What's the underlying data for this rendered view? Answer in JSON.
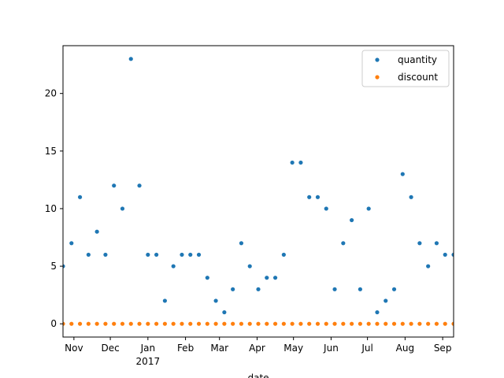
{
  "chart_data": {
    "type": "scatter",
    "title": "",
    "xlabel": "date",
    "ylabel": "",
    "grid": false,
    "legend_position": "top-right",
    "xlim": [
      "2016-10-23",
      "2017-09-10"
    ],
    "ylim": [
      -1.15,
      24.15
    ],
    "y_ticks": [
      0,
      5,
      10,
      15,
      20
    ],
    "x_ticks": [
      {
        "date": "2016-11-01",
        "label": "Nov"
      },
      {
        "date": "2016-12-01",
        "label": "Dec"
      },
      {
        "date": "2017-01-01",
        "label": "Jan",
        "sublabel": "2017"
      },
      {
        "date": "2017-02-01",
        "label": "Feb"
      },
      {
        "date": "2017-03-01",
        "label": "Mar"
      },
      {
        "date": "2017-04-01",
        "label": "Apr"
      },
      {
        "date": "2017-05-01",
        "label": "May"
      },
      {
        "date": "2017-06-01",
        "label": "Jun"
      },
      {
        "date": "2017-07-01",
        "label": "Jul"
      },
      {
        "date": "2017-08-01",
        "label": "Aug"
      },
      {
        "date": "2017-09-01",
        "label": "Sep"
      }
    ],
    "x": [
      "2016-10-23",
      "2016-10-30",
      "2016-11-06",
      "2016-11-13",
      "2016-11-20",
      "2016-11-27",
      "2016-12-04",
      "2016-12-11",
      "2016-12-18",
      "2016-12-25",
      "2017-01-01",
      "2017-01-08",
      "2017-01-15",
      "2017-01-22",
      "2017-01-29",
      "2017-02-05",
      "2017-02-12",
      "2017-02-19",
      "2017-02-26",
      "2017-03-05",
      "2017-03-12",
      "2017-03-19",
      "2017-03-26",
      "2017-04-02",
      "2017-04-09",
      "2017-04-16",
      "2017-04-23",
      "2017-04-30",
      "2017-05-07",
      "2017-05-14",
      "2017-05-21",
      "2017-05-28",
      "2017-06-04",
      "2017-06-11",
      "2017-06-18",
      "2017-06-25",
      "2017-07-02",
      "2017-07-09",
      "2017-07-16",
      "2017-07-23",
      "2017-07-30",
      "2017-08-06",
      "2017-08-13",
      "2017-08-20",
      "2017-08-27",
      "2017-09-03",
      "2017-09-10"
    ],
    "series": [
      {
        "name": "quantity",
        "color": "#1f77b4",
        "values": [
          5,
          7,
          11,
          6,
          8,
          6,
          12,
          10,
          23,
          12,
          6,
          6,
          2,
          5,
          6,
          6,
          6,
          4,
          2,
          1,
          3,
          7,
          5,
          3,
          4,
          4,
          6,
          14,
          14,
          11,
          11,
          10,
          3,
          7,
          9,
          3,
          10,
          1,
          2,
          3,
          13,
          11,
          7,
          5,
          7,
          6,
          6
        ]
      },
      {
        "name": "discount",
        "color": "#ff7f0e",
        "values": [
          0,
          0,
          0,
          0,
          0,
          0,
          0,
          0,
          0,
          0,
          0,
          0,
          0,
          0,
          0,
          0,
          0,
          0,
          0,
          0,
          0,
          0,
          0,
          0,
          0,
          0,
          0,
          0,
          0,
          0,
          0,
          0,
          0,
          0,
          0,
          0,
          0,
          0,
          0,
          0,
          0,
          0,
          0,
          0,
          0,
          0,
          0
        ]
      }
    ]
  }
}
